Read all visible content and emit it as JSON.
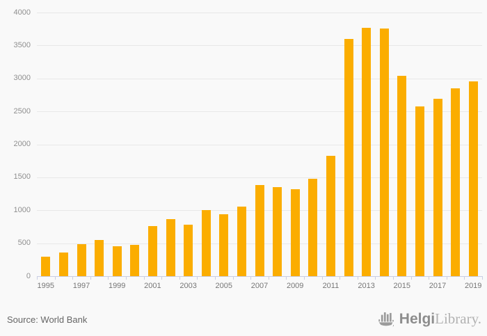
{
  "chart_data": {
    "type": "bar",
    "title": "",
    "categories": [
      1995,
      1996,
      1997,
      1998,
      1999,
      2000,
      2001,
      2002,
      2003,
      2004,
      2005,
      2006,
      2007,
      2008,
      2009,
      2010,
      2011,
      2012,
      2013,
      2014,
      2015,
      2016,
      2017,
      2018,
      2019
    ],
    "values": [
      300,
      355,
      485,
      545,
      450,
      470,
      765,
      865,
      785,
      1000,
      935,
      1060,
      1385,
      1355,
      1315,
      1480,
      1825,
      3600,
      3770,
      3755,
      3040,
      2580,
      2690,
      2850,
      2955
    ],
    "xlabel": "",
    "ylabel": "",
    "ylim": [
      0,
      4000
    ],
    "ytick_step": 500,
    "ytick_labels": [
      "0",
      "500",
      "1000",
      "1500",
      "2000",
      "2500",
      "3000",
      "3500",
      "4000"
    ],
    "xtick_labels": [
      "1995",
      "1997",
      "1999",
      "2001",
      "2003",
      "2005",
      "2007",
      "2009",
      "2011",
      "2013",
      "2015",
      "2017",
      "2019"
    ],
    "xtick_label_every": 2,
    "grid": true,
    "legend": false,
    "legend_position": "none"
  },
  "colors": {
    "bar": "#fbad00",
    "grid": "#e8e8e8",
    "axis": "#c9cee4",
    "background": "#f9f9f9",
    "ylabel_text": "#8f8f8f",
    "xlabel_text": "#767676",
    "source_text": "#666666",
    "brand_bold_text": "#8d8d8d",
    "brand_light_text": "#b2b2b2",
    "brand_icon": "#9b9b9b"
  },
  "footer": {
    "source": "Source: World Bank"
  },
  "branding": {
    "bold": "Helgi",
    "light": "Library."
  }
}
